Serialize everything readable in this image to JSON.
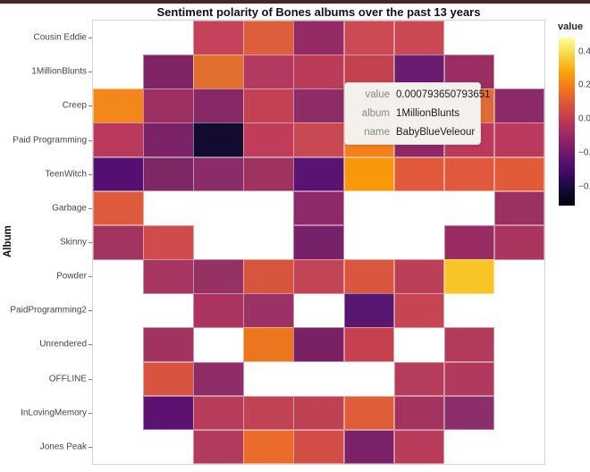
{
  "window": {
    "accent_color": "#4c2426"
  },
  "title": "Sentiment polarity of Bones albums over the past 13 years",
  "y_axis": {
    "label": "Album"
  },
  "legend": {
    "title": "value",
    "ticks": [
      "0.4",
      "0.2",
      "0.0",
      "−0.2",
      "−0.4"
    ],
    "gradient_top_to_bottom": [
      "#fcffa4",
      "#f6d746",
      "#fca50a",
      "#f37819",
      "#dd513a",
      "#bc3754",
      "#932667",
      "#6a176e",
      "#420a68",
      "#160b39",
      "#000004"
    ]
  },
  "tooltip": {
    "rows": [
      {
        "label": "value",
        "value": "0.000793650793651"
      },
      {
        "label": "album",
        "value": "1MillionBlunts"
      },
      {
        "label": "name",
        "value": "BabyBlueVeleour"
      }
    ]
  },
  "chart_data": {
    "type": "heatmap",
    "title": "Sentiment polarity of Bones albums over the past 13 years",
    "ylabel": "Album",
    "x_labels_visible": false,
    "n_cols": 9,
    "albums": [
      "Cousin Eddie",
      "1MillionBlunts",
      "Creep",
      "Paid Programming",
      "TeenWitch",
      "Garbage",
      "Skinny",
      "Powder",
      "PaidProgramming2",
      "Unrendered",
      "OFFLINE",
      "InLovingMemory",
      "Jones Peak"
    ],
    "colorbar": {
      "title": "value",
      "tick_values": [
        0.4,
        0.2,
        0.0,
        -0.2,
        -0.4
      ],
      "palette": "inferno",
      "domain": [
        -0.5,
        0.45
      ]
    },
    "hover": {
      "album": "1MillionBlunts",
      "name": "BabyBlueVeleour",
      "value": 0.000793650793651,
      "row_index": 1,
      "col_index": 5
    },
    "cells": [
      [
        null,
        null,
        {
          "c": "#c4425a",
          "v": 0.03
        },
        {
          "c": "#dc5e3b",
          "v": 0.13
        },
        {
          "c": "#952b64",
          "v": -0.09
        },
        {
          "c": "#cb4a54",
          "v": 0.06
        },
        {
          "c": "#c94853",
          "v": 0.06
        },
        null,
        null
      ],
      [
        null,
        {
          "c": "#7f2566",
          "v": -0.16
        },
        {
          "c": "#e1702f",
          "v": 0.17
        },
        {
          "c": "#b23a60",
          "v": -0.02
        },
        {
          "c": "#bb3c59",
          "v": 0.0
        },
        {
          "c": "#c3424f",
          "v": 0.000793650793651
        },
        {
          "c": "#6a1c71",
          "v": -0.22
        },
        {
          "c": "#9a2e63",
          "v": -0.08
        },
        null
      ],
      [
        {
          "c": "#f2871b",
          "v": 0.22
        },
        {
          "c": "#9c3062",
          "v": -0.07
        },
        {
          "c": "#872967",
          "v": -0.13
        },
        {
          "c": "#c24254",
          "v": 0.03
        },
        {
          "c": "#8e2c67",
          "v": -0.11
        },
        {
          "c": "#b63a59",
          "v": -0.01
        },
        {
          "c": "#9d3161",
          "v": -0.07
        },
        {
          "c": "#e06a33",
          "v": 0.16
        },
        {
          "c": "#8c2a68",
          "v": -0.12
        }
      ],
      [
        {
          "c": "#b93a5c",
          "v": -0.01
        },
        {
          "c": "#7c2367",
          "v": -0.17
        },
        {
          "c": "#120a31",
          "v": -0.44
        },
        {
          "c": "#bf3d58",
          "v": 0.02
        },
        {
          "c": "#c84854",
          "v": 0.06
        },
        {
          "c": "#f3811e",
          "v": 0.21
        },
        {
          "c": "#8d2968",
          "v": -0.12
        },
        {
          "c": "#bc3a5c",
          "v": 0.0
        },
        {
          "c": "#ba395d",
          "v": -0.01
        }
      ],
      [
        {
          "c": "#531070",
          "v": -0.28
        },
        {
          "c": "#7e2765",
          "v": -0.16
        },
        {
          "c": "#8a2c67",
          "v": -0.13
        },
        {
          "c": "#9f3360",
          "v": -0.06
        },
        {
          "c": "#5a1371",
          "v": -0.26
        },
        {
          "c": "#f9980b",
          "v": 0.25
        },
        {
          "c": "#e25a3b",
          "v": 0.13
        },
        {
          "c": "#e0593d",
          "v": 0.13
        },
        {
          "c": "#e25b39",
          "v": 0.13
        }
      ],
      [
        {
          "c": "#df5a3d",
          "v": 0.13
        },
        null,
        null,
        null,
        {
          "c": "#8e2a68",
          "v": -0.12
        },
        null,
        null,
        null,
        {
          "c": "#9b3162",
          "v": -0.07
        }
      ],
      [
        {
          "c": "#a23462",
          "v": -0.05
        },
        {
          "c": "#cf4b4c",
          "v": 0.08
        },
        null,
        null,
        {
          "c": "#762169",
          "v": -0.18
        },
        null,
        null,
        {
          "c": "#992c63",
          "v": -0.08
        },
        {
          "c": "#ac3560",
          "v": -0.03
        }
      ],
      [
        null,
        {
          "c": "#a73562",
          "v": -0.04
        },
        {
          "c": "#963164",
          "v": -0.09
        },
        {
          "c": "#d7543d",
          "v": 0.11
        },
        {
          "c": "#c24556",
          "v": 0.03
        },
        {
          "c": "#d9573f",
          "v": 0.12
        },
        {
          "c": "#bc3f58",
          "v": 0.01
        },
        {
          "c": "#f9c426",
          "v": 0.33
        },
        null
      ],
      [
        null,
        null,
        {
          "c": "#ab3560",
          "v": -0.03
        },
        {
          "c": "#9b3164",
          "v": -0.09
        },
        null,
        {
          "c": "#571670",
          "v": -0.27
        },
        {
          "c": "#c64553",
          "v": 0.05
        },
        null,
        null
      ],
      [
        null,
        {
          "c": "#a13361",
          "v": -0.05
        },
        null,
        {
          "c": "#ec751f",
          "v": 0.2
        },
        {
          "c": "#7a2166",
          "v": -0.17
        },
        {
          "c": "#c64150",
          "v": 0.05
        },
        null,
        {
          "c": "#b23a5a",
          "v": -0.02
        },
        null
      ],
      [
        null,
        {
          "c": "#d85440",
          "v": 0.11
        },
        {
          "c": "#8e2d67",
          "v": -0.11
        },
        null,
        null,
        null,
        {
          "c": "#b63c5b",
          "v": -0.01
        },
        {
          "c": "#b1395e",
          "v": -0.02
        },
        null
      ],
      [
        null,
        {
          "c": "#5b1271",
          "v": -0.26
        },
        {
          "c": "#b63c5a",
          "v": -0.01
        },
        {
          "c": "#bf4255",
          "v": 0.02
        },
        {
          "c": "#be4154",
          "v": 0.02
        },
        {
          "c": "#df5d37",
          "v": 0.13
        },
        {
          "c": "#a4345f",
          "v": -0.05
        },
        {
          "c": "#8c2e69",
          "v": -0.12
        },
        null
      ],
      [
        null,
        null,
        {
          "c": "#b13a5e",
          "v": -0.02
        },
        {
          "c": "#eb6c2a",
          "v": 0.18
        },
        {
          "c": "#d24d46",
          "v": 0.1
        },
        {
          "c": "#7b2168",
          "v": -0.17
        },
        {
          "c": "#b83c5a",
          "v": 0.0
        },
        null,
        null
      ]
    ]
  }
}
